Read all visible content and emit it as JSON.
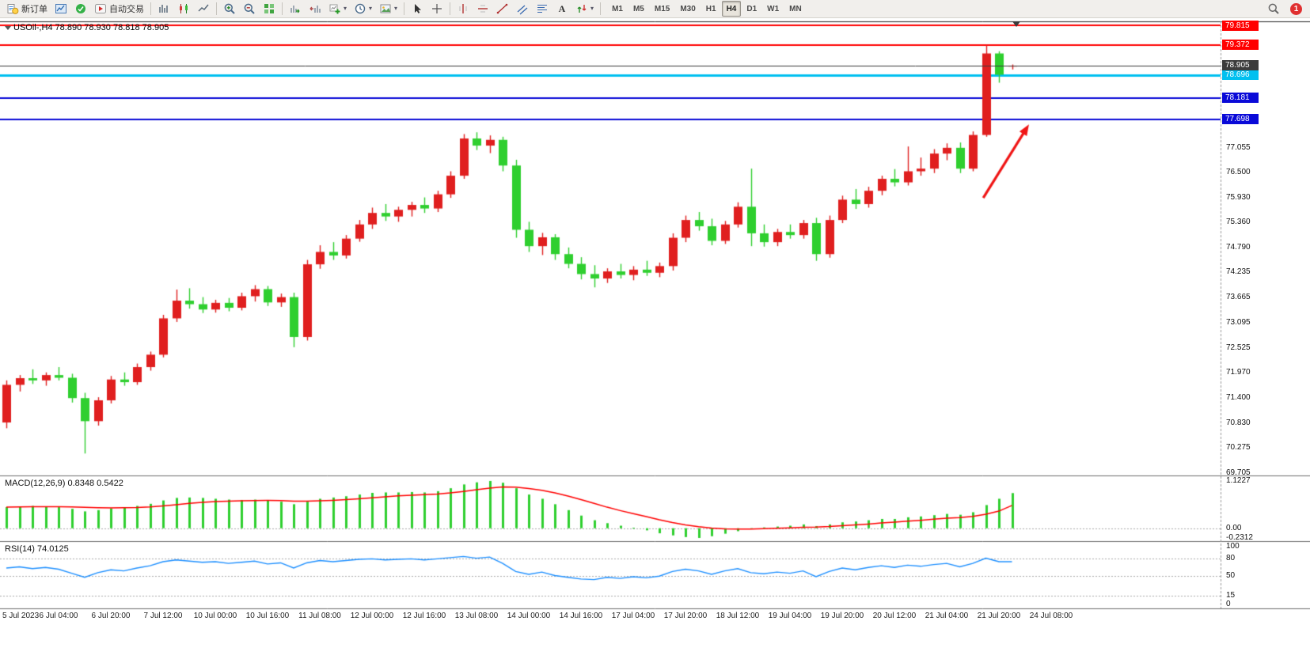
{
  "toolbar": {
    "items": [
      {
        "name": "new-order-button",
        "icon": "new-order",
        "label": "新订单"
      },
      {
        "name": "charts-window-button",
        "icon": "chart-window"
      },
      {
        "name": "market-watch-button",
        "icon": "market"
      },
      {
        "name": "autotrading-button",
        "icon": "autotrading",
        "label": "自动交易"
      },
      {
        "sep": true
      },
      {
        "name": "bar-chart-button",
        "icon": "bars"
      },
      {
        "name": "candlestick-chart-button",
        "icon": "candles"
      },
      {
        "name": "line-chart-button",
        "icon": "line"
      },
      {
        "sep": true
      },
      {
        "name": "zoom-in-button",
        "icon": "zoom-in"
      },
      {
        "name": "zoom-out-button",
        "icon": "zoom-out"
      },
      {
        "name": "tile-windows-button",
        "icon": "tile"
      },
      {
        "sep": true
      },
      {
        "name": "auto-scroll-button",
        "icon": "autoscroll"
      },
      {
        "name": "chart-shift-button",
        "icon": "shift"
      },
      {
        "name": "new-chart-button",
        "icon": "new-chart",
        "dropdown": true
      },
      {
        "name": "periodicity-button",
        "icon": "clock",
        "dropdown": true
      },
      {
        "name": "templates-button",
        "icon": "template",
        "dropdown": true
      },
      {
        "sep": true
      },
      {
        "name": "cursor-button",
        "icon": "cursor"
      },
      {
        "name": "crosshair-button",
        "icon": "crosshair"
      },
      {
        "sep": true
      },
      {
        "name": "vertical-line-button",
        "icon": "vline"
      },
      {
        "name": "horizontal-line-button",
        "icon": "hline"
      },
      {
        "name": "trendline-button",
        "icon": "trendline"
      },
      {
        "name": "equidistant-channel-button",
        "icon": "channel"
      },
      {
        "name": "fibonacci-button",
        "icon": "fibonacci"
      },
      {
        "name": "text-label-button",
        "icon": "text"
      },
      {
        "name": "arrows-button",
        "icon": "arrows",
        "dropdown": true
      },
      {
        "sep": true
      }
    ],
    "timeframes": [
      "M1",
      "M5",
      "M15",
      "M30",
      "H1",
      "H4",
      "D1",
      "W1",
      "MN"
    ],
    "active_timeframe": "H4",
    "notification_count": "1"
  },
  "chart": {
    "title": "USOil-,H4 78.890 78.930 78.818 78.905",
    "macd_label": "MACD(12,26,9) 0.8348 0.5422",
    "rsi_label": "RSI(14) 74.0125"
  },
  "chart_data": {
    "type": "candlestick",
    "title": "USOil-,H4",
    "symbol": "USOil-",
    "timeframe": "H4",
    "current_ohlc": {
      "open": 78.89,
      "high": 78.93,
      "low": 78.818,
      "close": 78.905
    },
    "colors": {
      "bull": "#e01f1f",
      "bear": "#2fcf2f",
      "macd_histogram": "#2fcf2f",
      "macd_signal": "#ff0000",
      "rsi_line": "#1e90ff",
      "bid_line": "#3c3c3c",
      "arrow": "#f01515",
      "level_red": "#ff0000",
      "level_blue": "#0a0ad8",
      "level_cyan": "#00c0f0"
    },
    "price_axis": {
      "max_visible": 79.815,
      "min_visible": 69.705,
      "ticks": [
        77.055,
        76.5,
        75.93,
        75.36,
        74.79,
        74.235,
        73.665,
        73.095,
        72.525,
        71.97,
        71.4,
        70.83,
        70.275,
        69.705
      ]
    },
    "levels": [
      {
        "price": 79.815,
        "label": "79.815",
        "color": "#ff0000",
        "width": 2,
        "role": "resistance"
      },
      {
        "price": 79.372,
        "label": "79.372",
        "color": "#ff0000",
        "width": 2,
        "role": "resistance"
      },
      {
        "price": 78.696,
        "label": "78.696",
        "color": "#00c0f0",
        "width": 3,
        "role": "level"
      },
      {
        "price": 78.181,
        "label": "78.181",
        "color": "#0a0ad8",
        "width": 2,
        "role": "support"
      },
      {
        "price": 77.698,
        "label": "77.698",
        "color": "#0a0ad8",
        "width": 2,
        "role": "support"
      },
      {
        "price": 78.905,
        "label": "78.905",
        "color": "#3c3c3c",
        "width": 1,
        "role": "bid"
      }
    ],
    "candles": [
      [
        70.85,
        71.8,
        70.72,
        71.7
      ],
      [
        71.7,
        71.92,
        71.55,
        71.85
      ],
      [
        71.85,
        72.05,
        71.72,
        71.8
      ],
      [
        71.8,
        71.98,
        71.68,
        71.92
      ],
      [
        71.92,
        72.1,
        71.8,
        71.86
      ],
      [
        71.86,
        71.95,
        71.3,
        71.4
      ],
      [
        71.4,
        71.52,
        70.15,
        70.88
      ],
      [
        70.88,
        71.42,
        70.78,
        71.35
      ],
      [
        71.35,
        71.9,
        71.28,
        71.82
      ],
      [
        71.82,
        71.98,
        71.68,
        71.76
      ],
      [
        71.76,
        72.18,
        71.7,
        72.1
      ],
      [
        72.1,
        72.45,
        72.02,
        72.38
      ],
      [
        72.38,
        73.28,
        72.32,
        73.2
      ],
      [
        73.2,
        73.85,
        73.12,
        73.6
      ],
      [
        73.6,
        73.88,
        73.42,
        73.52
      ],
      [
        73.52,
        73.68,
        73.32,
        73.4
      ],
      [
        73.4,
        73.62,
        73.33,
        73.55
      ],
      [
        73.55,
        73.66,
        73.36,
        73.44
      ],
      [
        73.44,
        73.78,
        73.38,
        73.7
      ],
      [
        73.7,
        73.95,
        73.58,
        73.86
      ],
      [
        73.86,
        73.93,
        73.48,
        73.56
      ],
      [
        73.56,
        73.76,
        73.46,
        73.68
      ],
      [
        73.68,
        73.78,
        72.55,
        72.78
      ],
      [
        72.78,
        74.52,
        72.7,
        74.42
      ],
      [
        74.42,
        74.85,
        74.32,
        74.7
      ],
      [
        74.7,
        74.92,
        74.52,
        74.62
      ],
      [
        74.62,
        75.08,
        74.55,
        75.0
      ],
      [
        75.0,
        75.42,
        74.93,
        75.32
      ],
      [
        75.32,
        75.7,
        75.22,
        75.58
      ],
      [
        75.58,
        75.78,
        75.4,
        75.5
      ],
      [
        75.5,
        75.72,
        75.38,
        75.65
      ],
      [
        75.65,
        75.83,
        75.5,
        75.76
      ],
      [
        75.76,
        75.93,
        75.58,
        75.68
      ],
      [
        75.68,
        76.08,
        75.6,
        76.0
      ],
      [
        76.0,
        76.52,
        75.92,
        76.42
      ],
      [
        76.42,
        77.36,
        76.35,
        77.26
      ],
      [
        77.26,
        77.4,
        77.0,
        77.1
      ],
      [
        77.1,
        77.33,
        76.93,
        77.23
      ],
      [
        77.23,
        77.3,
        76.52,
        76.65
      ],
      [
        76.65,
        76.78,
        75.02,
        75.2
      ],
      [
        75.2,
        75.38,
        74.7,
        74.83
      ],
      [
        74.83,
        75.13,
        74.63,
        75.03
      ],
      [
        75.03,
        75.1,
        74.52,
        74.65
      ],
      [
        74.65,
        74.8,
        74.33,
        74.43
      ],
      [
        74.43,
        74.58,
        74.08,
        74.2
      ],
      [
        74.2,
        74.4,
        73.9,
        74.1
      ],
      [
        74.1,
        74.33,
        74.0,
        74.26
      ],
      [
        74.26,
        74.43,
        74.1,
        74.18
      ],
      [
        74.18,
        74.38,
        74.06,
        74.3
      ],
      [
        74.3,
        74.5,
        74.16,
        74.23
      ],
      [
        74.23,
        74.46,
        74.13,
        74.38
      ],
      [
        74.38,
        75.12,
        74.28,
        75.02
      ],
      [
        75.02,
        75.52,
        74.92,
        75.42
      ],
      [
        75.42,
        75.6,
        75.18,
        75.28
      ],
      [
        75.28,
        75.45,
        74.85,
        74.95
      ],
      [
        74.95,
        75.4,
        74.88,
        75.32
      ],
      [
        75.32,
        75.82,
        75.25,
        75.72
      ],
      [
        75.72,
        76.58,
        74.83,
        75.12
      ],
      [
        75.12,
        75.32,
        74.82,
        74.92
      ],
      [
        74.92,
        75.22,
        74.83,
        75.15
      ],
      [
        75.15,
        75.32,
        75.0,
        75.08
      ],
      [
        75.08,
        75.42,
        75.0,
        75.35
      ],
      [
        75.35,
        75.47,
        74.5,
        74.65
      ],
      [
        74.65,
        75.52,
        74.57,
        75.42
      ],
      [
        75.42,
        75.97,
        75.35,
        75.88
      ],
      [
        75.88,
        76.12,
        75.67,
        75.78
      ],
      [
        75.78,
        76.17,
        75.7,
        76.08
      ],
      [
        76.08,
        76.42,
        75.98,
        76.35
      ],
      [
        76.35,
        76.57,
        76.18,
        76.27
      ],
      [
        76.27,
        77.08,
        76.2,
        76.52
      ],
      [
        76.52,
        76.83,
        76.42,
        76.58
      ],
      [
        76.58,
        77.02,
        76.48,
        76.92
      ],
      [
        76.92,
        77.15,
        76.77,
        77.05
      ],
      [
        77.05,
        77.17,
        76.48,
        76.58
      ],
      [
        76.58,
        77.42,
        76.52,
        77.34
      ],
      [
        77.34,
        79.372,
        77.3,
        79.18
      ],
      [
        79.18,
        79.23,
        78.52,
        78.7
      ],
      [
        78.89,
        78.93,
        78.818,
        78.905
      ]
    ],
    "time_labels": [
      "5 Jul 2023",
      "6 Jul 04:00",
      "6 Jul 20:00",
      "7 Jul 12:00",
      "10 Jul 00:00",
      "10 Jul 16:00",
      "11 Jul 08:00",
      "12 Jul 00:00",
      "12 Jul 16:00",
      "13 Jul 08:00",
      "14 Jul 00:00",
      "14 Jul 16:00",
      "17 Jul 04:00",
      "17 Jul 20:00",
      "18 Jul 12:00",
      "19 Jul 04:00",
      "19 Jul 20:00",
      "20 Jul 12:00",
      "21 Jul 04:00",
      "21 Jul 20:00",
      "24 Jul 08:00"
    ],
    "macd": {
      "params": "12,26,9",
      "current_values": [
        0.8348,
        0.5422
      ],
      "scale_labels": [
        "1.1227",
        "0.00",
        "-0.2312"
      ],
      "max": 1.1227,
      "min": -0.2312,
      "histogram": [
        0.5,
        0.52,
        0.53,
        0.52,
        0.5,
        0.46,
        0.4,
        0.43,
        0.47,
        0.49,
        0.53,
        0.58,
        0.66,
        0.72,
        0.73,
        0.72,
        0.7,
        0.68,
        0.67,
        0.68,
        0.66,
        0.63,
        0.57,
        0.63,
        0.7,
        0.73,
        0.76,
        0.8,
        0.84,
        0.85,
        0.85,
        0.86,
        0.85,
        0.88,
        0.95,
        1.04,
        1.09,
        1.1227,
        1.08,
        0.95,
        0.8,
        0.7,
        0.57,
        0.43,
        0.3,
        0.19,
        0.12,
        0.06,
        0.01,
        -0.05,
        -0.12,
        -0.17,
        -0.21,
        -0.2312,
        -0.19,
        -0.13,
        -0.07,
        -0.02,
        0.02,
        0.04,
        0.06,
        0.09,
        0.05,
        0.09,
        0.14,
        0.16,
        0.19,
        0.22,
        0.22,
        0.26,
        0.28,
        0.31,
        0.34,
        0.32,
        0.38,
        0.55,
        0.7,
        0.8348
      ],
      "signal": [
        0.5,
        0.505,
        0.51,
        0.513,
        0.513,
        0.508,
        0.495,
        0.487,
        0.485,
        0.487,
        0.492,
        0.505,
        0.53,
        0.56,
        0.59,
        0.615,
        0.633,
        0.645,
        0.652,
        0.658,
        0.66,
        0.657,
        0.645,
        0.642,
        0.65,
        0.663,
        0.68,
        0.7,
        0.725,
        0.748,
        0.768,
        0.785,
        0.8,
        0.814,
        0.838,
        0.875,
        0.915,
        0.955,
        0.98,
        0.975,
        0.945,
        0.9,
        0.84,
        0.765,
        0.68,
        0.59,
        0.5,
        0.42,
        0.345,
        0.275,
        0.2,
        0.135,
        0.08,
        0.035,
        0.005,
        -0.015,
        -0.02,
        -0.02,
        -0.012,
        -0.002,
        0.008,
        0.023,
        0.028,
        0.04,
        0.06,
        0.08,
        0.1,
        0.124,
        0.143,
        0.166,
        0.189,
        0.213,
        0.238,
        0.254,
        0.279,
        0.333,
        0.406,
        0.5422
      ]
    },
    "rsi": {
      "period": 14,
      "current_value": 74.0125,
      "levels": [
        80,
        50,
        15
      ],
      "scale_labels": [
        "100",
        "80",
        "50",
        "15",
        "0"
      ],
      "values": [
        63,
        65,
        62,
        64,
        61,
        54,
        47,
        55,
        60,
        58,
        63,
        67,
        74,
        77,
        75,
        73,
        74,
        71,
        73,
        75,
        70,
        72,
        63,
        72,
        76,
        74,
        76,
        78,
        79,
        77,
        78,
        79,
        77,
        79,
        81,
        83,
        80,
        82,
        71,
        57,
        52,
        56,
        50,
        47,
        44,
        43,
        47,
        45,
        48,
        46,
        49,
        57,
        61,
        58,
        52,
        58,
        62,
        55,
        53,
        56,
        54,
        58,
        48,
        57,
        63,
        60,
        64,
        67,
        64,
        68,
        66,
        69,
        71,
        65,
        71,
        80,
        74,
        74.0125
      ],
      "ylim": [
        0,
        100
      ]
    },
    "annotation_arrow": {
      "from_bar": 74.8,
      "from_price": 75.92,
      "to_bar": 78.3,
      "to_price": 77.58
    }
  }
}
